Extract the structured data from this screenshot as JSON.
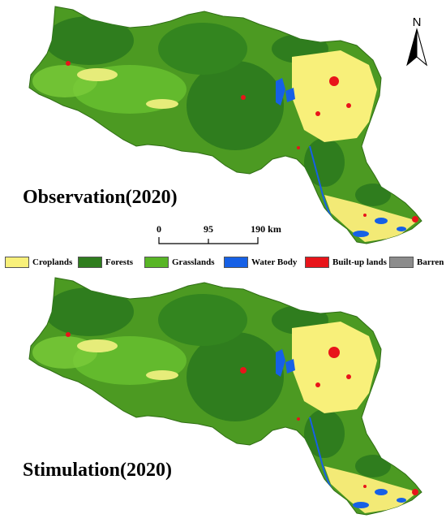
{
  "maps": [
    {
      "title": "Observation(2020)"
    },
    {
      "title": "Stimulation(2020)"
    }
  ],
  "north_arrow": {
    "label": "N"
  },
  "scale_bar": {
    "ticks": [
      "0",
      "95",
      "190 km"
    ]
  },
  "legend": {
    "items": [
      {
        "label": "Croplands",
        "color": "#f8f07a"
      },
      {
        "label": "Forests",
        "color": "#2f7d1e"
      },
      {
        "label": "Grasslands",
        "color": "#58b526"
      },
      {
        "label": "Water Body",
        "color": "#1660e6"
      },
      {
        "label": "Built-up lands",
        "color": "#e8141a"
      },
      {
        "label": "Barren",
        "color": "#8c8c8c"
      }
    ]
  }
}
